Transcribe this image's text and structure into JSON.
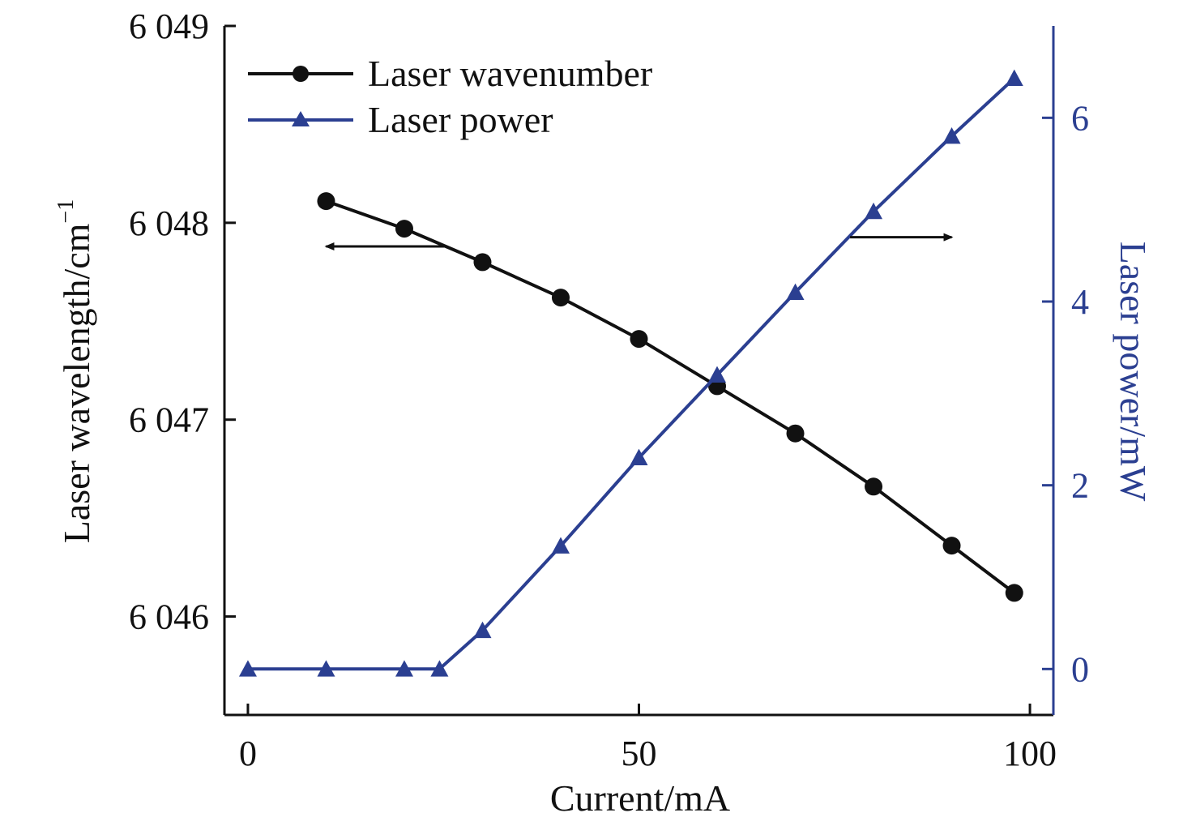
{
  "chart_data": {
    "type": "line",
    "xlabel": "Current/mA",
    "ylabel_left": "Laser wavelength/cm",
    "ylabel_left_superscript": "−1",
    "ylabel_right": "Laser power/mW",
    "xlim": [
      -3,
      103
    ],
    "ylim_left": [
      6045.5,
      6049
    ],
    "ylim_right": [
      -0.5,
      7
    ],
    "x_ticks": [
      0,
      50,
      100
    ],
    "x_tick_labels": [
      "0",
      "50",
      "100"
    ],
    "y_left_ticks": [
      6046,
      6047,
      6048,
      6049
    ],
    "y_left_tick_labels": [
      "6 046",
      "6 047",
      "6 048",
      "6 049"
    ],
    "y_right_ticks": [
      0,
      2,
      4,
      6
    ],
    "y_right_tick_labels": [
      "0",
      "2",
      "4",
      "6"
    ],
    "legend_position": "top-left",
    "grid": false,
    "colors": {
      "black": "#111111",
      "blue": "#2b3f91"
    },
    "series": [
      {
        "name": "Laser wavenumber",
        "axis": "left",
        "marker": "circle",
        "color": "#111111",
        "x": [
          10,
          20,
          30,
          40,
          50,
          60,
          70,
          80,
          90,
          98
        ],
        "y": [
          6048.11,
          6047.97,
          6047.8,
          6047.62,
          6047.41,
          6047.17,
          6046.93,
          6046.66,
          6046.36,
          6046.12
        ]
      },
      {
        "name": "Laser power",
        "axis": "right",
        "marker": "triangle",
        "color": "#2b3f91",
        "x": [
          0,
          10,
          20,
          24.5,
          30,
          40,
          50,
          60,
          70,
          80,
          90,
          98
        ],
        "y": [
          0,
          0,
          0,
          0,
          0.42,
          1.34,
          2.3,
          3.2,
          4.1,
          4.98,
          5.8,
          6.43
        ]
      }
    ],
    "annotations": [
      {
        "type": "arrow",
        "direction": "left",
        "points_to_axis": "left",
        "from": [
          25.5,
          6047.88
        ],
        "to": [
          10,
          6047.88
        ]
      },
      {
        "type": "arrow",
        "direction": "right",
        "points_to_axis": "right",
        "from": [
          77,
          4.7
        ],
        "to": [
          90,
          4.7
        ]
      }
    ]
  }
}
